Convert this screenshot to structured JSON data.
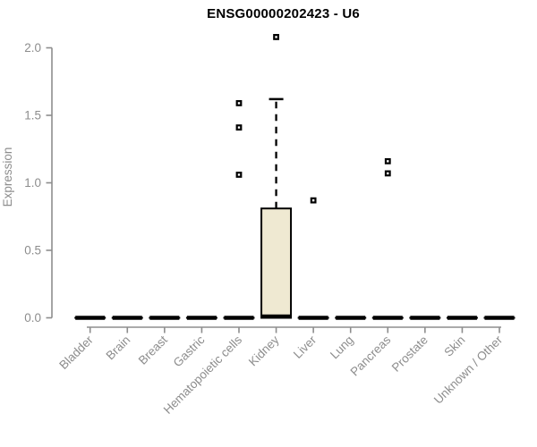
{
  "chart_data": {
    "type": "boxplot",
    "title": "ENSG00000202423 - U6",
    "ylabel": "Expression",
    "xlabel": "",
    "ylim": [
      0.0,
      2.0
    ],
    "yticks": [
      0.0,
      0.5,
      1.0,
      1.5,
      2.0
    ],
    "ytick_labels": [
      "0.0",
      "0.5",
      "1.0",
      "1.5",
      "2.0"
    ],
    "grid": "off",
    "legend": "none",
    "categories": [
      "Bladder",
      "Brain",
      "Breast",
      "Gastric",
      "Hematopoietic cells",
      "Kidney",
      "Liver",
      "Lung",
      "Pancreas",
      "Prostate",
      "Skin",
      "Unknown / Other"
    ],
    "boxes": [
      {
        "category": "Bladder",
        "low": 0,
        "q1": 0,
        "median": 0,
        "q3": 0,
        "high": 0,
        "outliers": []
      },
      {
        "category": "Brain",
        "low": 0,
        "q1": 0,
        "median": 0,
        "q3": 0,
        "high": 0,
        "outliers": []
      },
      {
        "category": "Breast",
        "low": 0,
        "q1": 0,
        "median": 0,
        "q3": 0,
        "high": 0,
        "outliers": []
      },
      {
        "category": "Gastric",
        "low": 0,
        "q1": 0,
        "median": 0,
        "q3": 0,
        "high": 0,
        "outliers": []
      },
      {
        "category": "Hematopoietic cells",
        "low": 0,
        "q1": 0,
        "median": 0,
        "q3": 0,
        "high": 0,
        "outliers": [
          1.06,
          1.41,
          1.59
        ]
      },
      {
        "category": "Kidney",
        "low": 0,
        "q1": 0,
        "median": 0.01,
        "q3": 0.81,
        "high": 1.62,
        "outliers": [
          2.08
        ]
      },
      {
        "category": "Liver",
        "low": 0,
        "q1": 0,
        "median": 0,
        "q3": 0,
        "high": 0,
        "outliers": [
          0.87
        ]
      },
      {
        "category": "Lung",
        "low": 0,
        "q1": 0,
        "median": 0,
        "q3": 0,
        "high": 0,
        "outliers": []
      },
      {
        "category": "Pancreas",
        "low": 0,
        "q1": 0,
        "median": 0,
        "q3": 0,
        "high": 0,
        "outliers": [
          1.07,
          1.16
        ]
      },
      {
        "category": "Prostate",
        "low": 0,
        "q1": 0,
        "median": 0,
        "q3": 0,
        "high": 0,
        "outliers": []
      },
      {
        "category": "Skin",
        "low": 0,
        "q1": 0,
        "median": 0,
        "q3": 0,
        "high": 0,
        "outliers": []
      },
      {
        "category": "Unknown / Other",
        "low": 0,
        "q1": 0,
        "median": 0,
        "q3": 0,
        "high": 0,
        "outliers": []
      }
    ],
    "colors": {
      "box_fill": "#efe9d2",
      "box_border": "#000000",
      "whisker": "#000000",
      "outlier_border": "#000000",
      "outlier_fill": "#ffffff",
      "axis": "#8d8d8d",
      "tick_text": "#8d8d8d",
      "title": "#000000",
      "background": "#ffffff"
    }
  }
}
